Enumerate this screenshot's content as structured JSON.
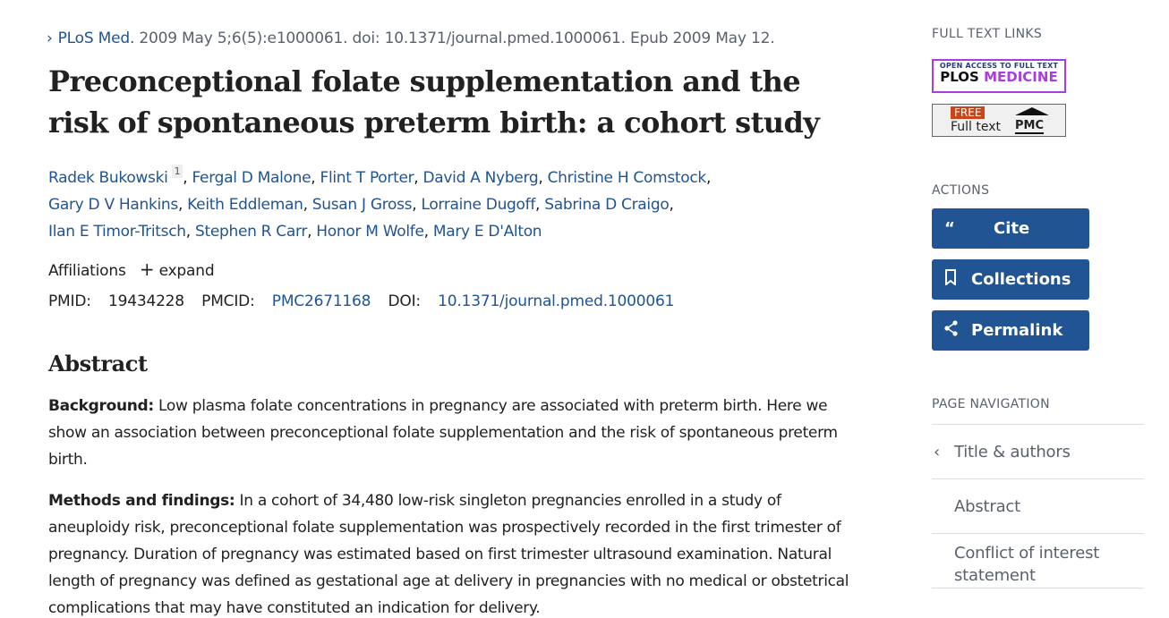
{
  "citation": {
    "journal": "PLoS Med.",
    "details": "2009 May 5;6(5):e1000061. doi: 10.1371/journal.pmed.1000061. Epub 2009 May 12."
  },
  "title": "Preconceptional folate supplementation and the risk of spontaneous preterm birth: a cohort study",
  "authors": [
    "Radek Bukowski",
    "Fergal D Malone",
    "Flint T Porter",
    "David A Nyberg",
    "Christine H Comstock",
    "Gary D V Hankins",
    "Keith Eddleman",
    "Susan J Gross",
    "Lorraine Dugoff",
    "Sabrina D Craigo",
    "Ilan E Timor-Tritsch",
    "Stephen R Carr",
    "Honor M Wolfe",
    "Mary E D'Alton"
  ],
  "first_author_affiliation": "1",
  "affiliations": {
    "label": "Affiliations",
    "expand": "expand"
  },
  "ids": {
    "pmid_label": "PMID:",
    "pmid": "19434228",
    "pmcid_label": "PMCID:",
    "pmcid": "PMC2671168",
    "doi_label": "DOI:",
    "doi": "10.1371/journal.pmed.1000061"
  },
  "abstract": {
    "heading": "Abstract",
    "background_label": "Background:",
    "background": "Low plasma folate concentrations in pregnancy are associated with preterm birth. Here we show an association between preconceptional folate supplementation and the risk of spontaneous preterm birth.",
    "methods_label": "Methods and findings:",
    "methods": "In a cohort of 34,480 low-risk singleton pregnancies enrolled in a study of aneuploidy risk, preconceptional folate supplementation was prospectively recorded in the first trimester of pregnancy. Duration of pregnancy was estimated based on first trimester ultrasound examination. Natural length of pregnancy was defined as gestational age at delivery in pregnancies with no medical or obstetrical complications that may have constituted an indication for delivery."
  },
  "sidebar": {
    "full_text_heading": "FULL TEXT LINKS",
    "plos": {
      "small": "OPEN ACCESS TO FULL TEXT",
      "plos": "PLOS",
      "medicine": "MEDICINE"
    },
    "pmc": {
      "free": "FREE",
      "full_text": "Full text",
      "pmc": "PMC"
    },
    "actions_heading": "ACTIONS",
    "actions": [
      {
        "label": "Cite",
        "icon": "quote-icon"
      },
      {
        "label": "Collections",
        "icon": "bookmark-icon"
      },
      {
        "label": "Permalink",
        "icon": "share-icon"
      }
    ],
    "nav_heading": "PAGE NAVIGATION",
    "nav": [
      "Title & authors",
      "Abstract",
      "Conflict of interest statement"
    ]
  },
  "colors": {
    "link": "#205493",
    "button": "#205493",
    "plos_purple": "#a63ee0",
    "free_badge": "#c8461c"
  }
}
